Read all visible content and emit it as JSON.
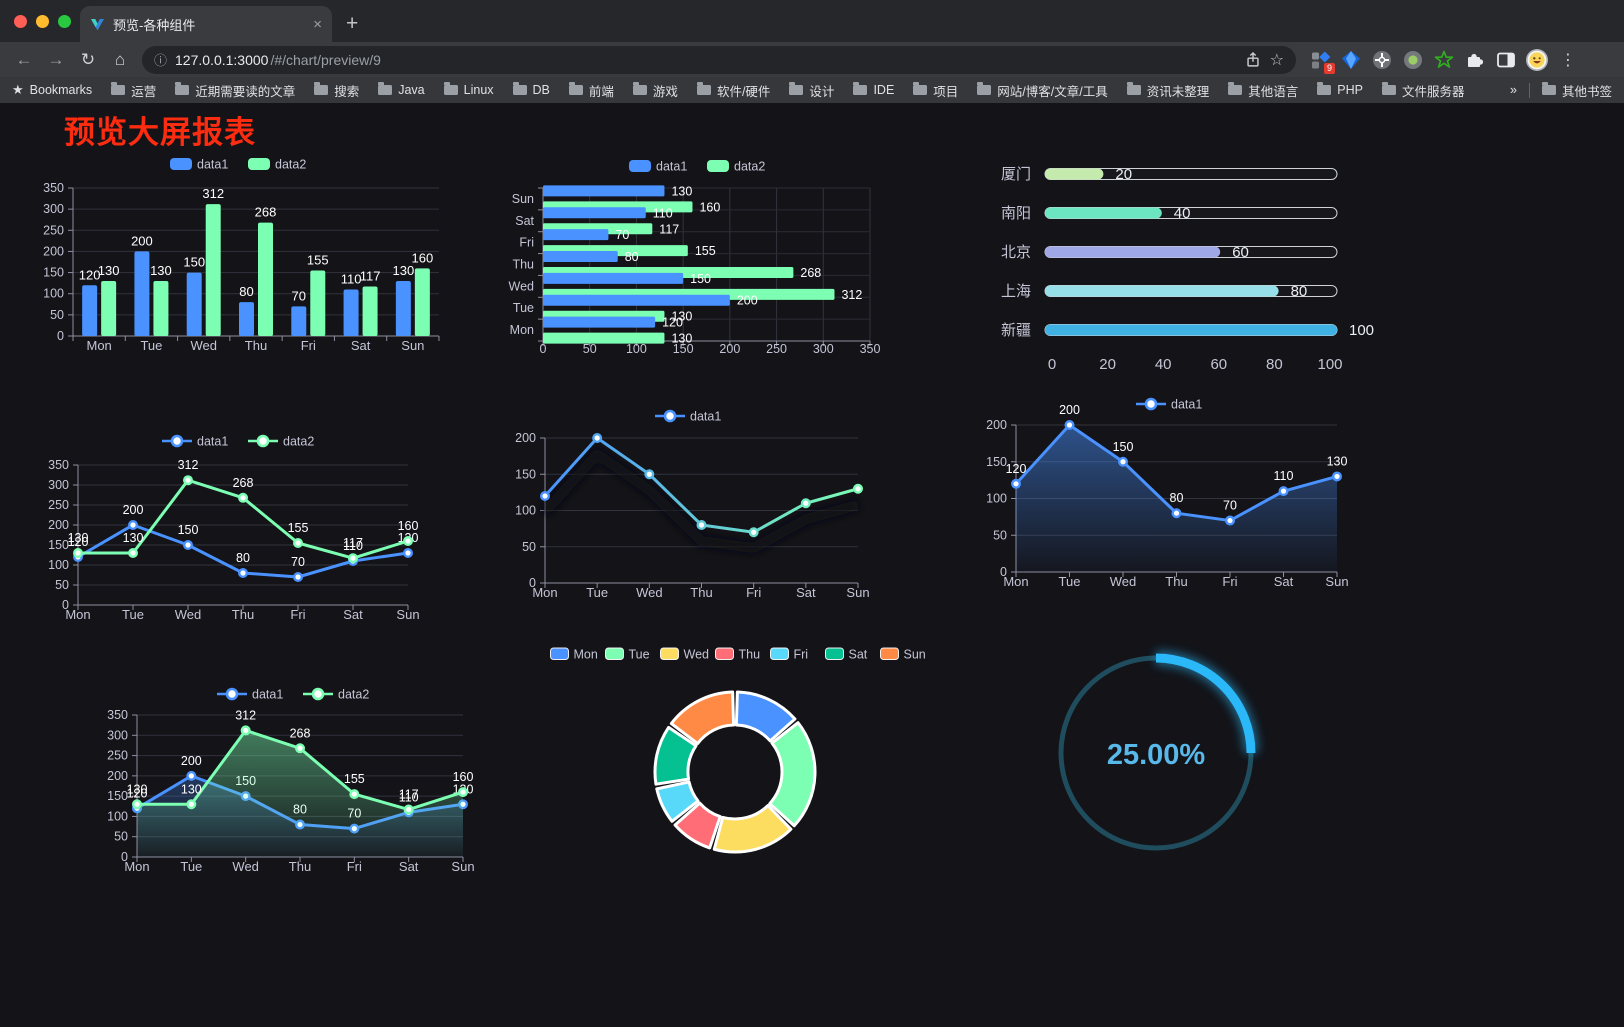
{
  "browser": {
    "tab": {
      "title": "预览-各种组件",
      "close_glyph": "×",
      "new_tab_glyph": "+"
    },
    "nav": {
      "back_glyph": "←",
      "forward_glyph": "→",
      "reload_glyph": "↻",
      "home_glyph": "⌂"
    },
    "address": {
      "info_glyph": "ⓘ",
      "url_host": "127.0.0.1:3000",
      "url_path": "/#/chart/preview/9"
    },
    "extension_badge": "9",
    "menu_glyph": "⋮",
    "bookmarks_bar": {
      "star_label": "Bookmarks",
      "folders": [
        "运营",
        "近期需要读的文章",
        "搜索",
        "Java",
        "Linux",
        "DB",
        "前端",
        "游戏",
        "软件/硬件",
        "设计",
        "IDE",
        "项目",
        "网站/博客/文章/工具",
        "资讯未整理",
        "其他语言",
        "PHP",
        "文件服务器"
      ],
      "overflow_chevron": "»",
      "other_bookmarks": "其他书签"
    }
  },
  "page": {
    "title": "预览大屏报表",
    "title_color": "#fb2c10",
    "background": "#131318"
  },
  "palette": {
    "data1_blue": "#4992ff",
    "data2_green": "#7cffb2",
    "axis_label": "#c6c5d6",
    "grid_line": "#33333d",
    "axis_line": "#8f8fa0",
    "value_label": "#ffffff"
  },
  "chart_data": [
    {
      "id": "grouped-bar",
      "type": "bar",
      "legend": [
        "data1",
        "data2"
      ],
      "categories": [
        "Mon",
        "Tue",
        "Wed",
        "Thu",
        "Fri",
        "Sat",
        "Sun"
      ],
      "series": [
        {
          "name": "data1",
          "color": "#4992ff",
          "values": [
            120,
            200,
            150,
            80,
            70,
            110,
            130
          ]
        },
        {
          "name": "data2",
          "color": "#7cffb2",
          "values": [
            130,
            130,
            312,
            268,
            155,
            117,
            160
          ]
        }
      ],
      "ylim": [
        0,
        350
      ],
      "ystep": 50,
      "labels": true,
      "legend_position": "top",
      "grid": true
    },
    {
      "id": "horizontal-bar",
      "type": "bar-horizontal",
      "legend": [
        "data1",
        "data2"
      ],
      "categories": [
        "Mon",
        "Tue",
        "Wed",
        "Thu",
        "Fri",
        "Sat",
        "Sun"
      ],
      "display_order_top_to_bottom": [
        "Sun",
        "Sat",
        "Fri",
        "Thu",
        "Wed",
        "Tue",
        "Mon"
      ],
      "series": [
        {
          "name": "data1",
          "color": "#4992ff",
          "values": [
            120,
            200,
            150,
            80,
            70,
            110,
            130
          ]
        },
        {
          "name": "data2",
          "color": "#7cffb2",
          "values": [
            130,
            130,
            312,
            268,
            155,
            117,
            160
          ]
        }
      ],
      "xlim": [
        0,
        350
      ],
      "xstep": 50,
      "labels": true,
      "legend_position": "top",
      "grid": true
    },
    {
      "id": "city-progress",
      "type": "bar-horizontal",
      "variant": "progress-pills",
      "items": [
        {
          "label": "厦门",
          "value": 20,
          "color": "#c4ebad"
        },
        {
          "label": "南阳",
          "value": 40,
          "color": "#6be6c1"
        },
        {
          "label": "北京",
          "value": 60,
          "color": "#a0a7e6"
        },
        {
          "label": "上海",
          "value": 80,
          "color": "#96dee8"
        },
        {
          "label": "新疆",
          "value": 100,
          "color": "#3fb1e3"
        }
      ],
      "xlim": [
        0,
        100
      ],
      "xticks": [
        0,
        20,
        40,
        60,
        80,
        100
      ],
      "labels": true
    },
    {
      "id": "dual-line",
      "type": "line",
      "legend": [
        "data1",
        "data2"
      ],
      "categories": [
        "Mon",
        "Tue",
        "Wed",
        "Thu",
        "Fri",
        "Sat",
        "Sun"
      ],
      "series": [
        {
          "name": "data1",
          "color": "#4992ff",
          "values": [
            120,
            200,
            150,
            80,
            70,
            110,
            130
          ]
        },
        {
          "name": "data2",
          "color": "#7cffb2",
          "values": [
            130,
            130,
            312,
            268,
            155,
            117,
            160
          ]
        }
      ],
      "ylim": [
        0,
        350
      ],
      "ystep": 50,
      "labels": true,
      "legend_position": "top",
      "grid": true
    },
    {
      "id": "gradient-line",
      "type": "line",
      "legend": [
        "data1"
      ],
      "categories": [
        "Mon",
        "Tue",
        "Wed",
        "Thu",
        "Fri",
        "Sat",
        "Sun"
      ],
      "series": [
        {
          "name": "data1",
          "gradient": [
            "#4992ff",
            "#7cffb2"
          ],
          "values": [
            120,
            200,
            150,
            80,
            70,
            110,
            130
          ]
        }
      ],
      "ylim": [
        0,
        200
      ],
      "ystep": 50,
      "labels": false,
      "shadow": true,
      "legend_position": "top",
      "grid": true
    },
    {
      "id": "area-line",
      "type": "area",
      "legend": [
        "data1"
      ],
      "categories": [
        "Mon",
        "Tue",
        "Wed",
        "Thu",
        "Fri",
        "Sat",
        "Sun"
      ],
      "series": [
        {
          "name": "data1",
          "color": "#4992ff",
          "area": true,
          "values": [
            120,
            200,
            150,
            80,
            70,
            110,
            130
          ]
        }
      ],
      "ylim": [
        0,
        200
      ],
      "ystep": 50,
      "labels": true,
      "legend_position": "top",
      "grid": true
    },
    {
      "id": "dual-area-line",
      "type": "area",
      "legend": [
        "data1",
        "data2"
      ],
      "categories": [
        "Mon",
        "Tue",
        "Wed",
        "Thu",
        "Fri",
        "Sat",
        "Sun"
      ],
      "series": [
        {
          "name": "data1",
          "color": "#4992ff",
          "area": true,
          "values": [
            120,
            200,
            150,
            80,
            70,
            110,
            130
          ]
        },
        {
          "name": "data2",
          "color": "#7cffb2",
          "area": true,
          "values": [
            130,
            130,
            312,
            268,
            155,
            117,
            160
          ]
        }
      ],
      "ylim": [
        0,
        350
      ],
      "ystep": 50,
      "labels": true,
      "legend_position": "top",
      "grid": true
    },
    {
      "id": "weekday-donut",
      "type": "pie",
      "subtype": "donut",
      "legend_position": "top",
      "categories": [
        "Mon",
        "Tue",
        "Wed",
        "Thu",
        "Fri",
        "Sat",
        "Sun"
      ],
      "values": [
        120,
        200,
        150,
        80,
        70,
        110,
        130
      ],
      "colors": [
        "#4992ff",
        "#7cffb2",
        "#fddd60",
        "#ff6e76",
        "#58d9f9",
        "#05c091",
        "#ff8a45"
      ],
      "start_angle": "top",
      "direction": "clockwise",
      "border_color": "#ffffff",
      "rounded_corners": true
    },
    {
      "id": "percent-gauge",
      "type": "gauge",
      "value": 25,
      "max": 100,
      "label": "25.00%",
      "progress_color": "#2ab8f8",
      "track_color": "#1f4d5d",
      "text_color": "#58b8ea",
      "start_angle": "top",
      "direction": "clockwise"
    }
  ]
}
